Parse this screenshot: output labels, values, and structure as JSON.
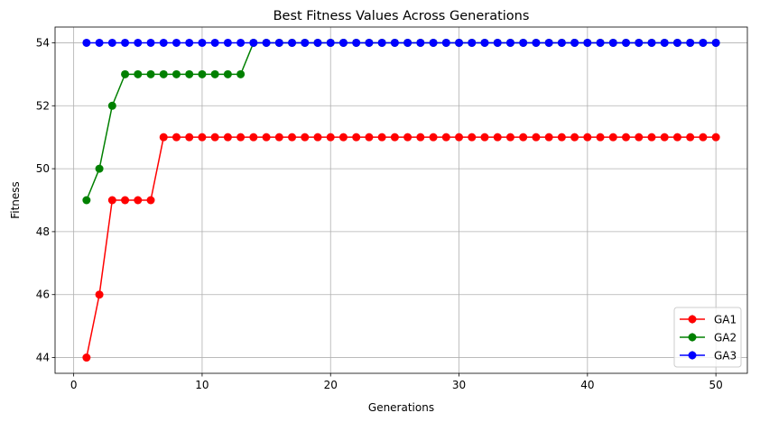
{
  "chart_data": {
    "type": "line",
    "title": "Best Fitness Values Across Generations",
    "xlabel": "Generations",
    "ylabel": "Fitness",
    "xlim": [
      -1.45,
      52.45
    ],
    "ylim": [
      43.5,
      54.5
    ],
    "xticks": [
      0,
      10,
      20,
      30,
      40,
      50
    ],
    "yticks": [
      44,
      46,
      48,
      50,
      52,
      54
    ],
    "grid": true,
    "legend_position": "lower-right",
    "x": [
      1,
      2,
      3,
      4,
      5,
      6,
      7,
      8,
      9,
      10,
      11,
      12,
      13,
      14,
      15,
      16,
      17,
      18,
      19,
      20,
      21,
      22,
      23,
      24,
      25,
      26,
      27,
      28,
      29,
      30,
      31,
      32,
      33,
      34,
      35,
      36,
      37,
      38,
      39,
      40,
      41,
      42,
      43,
      44,
      45,
      46,
      47,
      48,
      49,
      50
    ],
    "series": [
      {
        "name": "GA1",
        "color": "#ff0000",
        "values": [
          44,
          46,
          49,
          49,
          49,
          49,
          51,
          51,
          51,
          51,
          51,
          51,
          51,
          51,
          51,
          51,
          51,
          51,
          51,
          51,
          51,
          51,
          51,
          51,
          51,
          51,
          51,
          51,
          51,
          51,
          51,
          51,
          51,
          51,
          51,
          51,
          51,
          51,
          51,
          51,
          51,
          51,
          51,
          51,
          51,
          51,
          51,
          51,
          51,
          51
        ]
      },
      {
        "name": "GA2",
        "color": "#008000",
        "values": [
          49,
          50,
          52,
          53,
          53,
          53,
          53,
          53,
          53,
          53,
          53,
          53,
          53,
          54,
          54,
          54,
          54,
          54,
          54,
          54,
          54,
          54,
          54,
          54,
          54,
          54,
          54,
          54,
          54,
          54,
          54,
          54,
          54,
          54,
          54,
          54,
          54,
          54,
          54,
          54,
          54,
          54,
          54,
          54,
          54,
          54,
          54,
          54,
          54,
          54
        ]
      },
      {
        "name": "GA3",
        "color": "#0000ff",
        "values": [
          54,
          54,
          54,
          54,
          54,
          54,
          54,
          54,
          54,
          54,
          54,
          54,
          54,
          54,
          54,
          54,
          54,
          54,
          54,
          54,
          54,
          54,
          54,
          54,
          54,
          54,
          54,
          54,
          54,
          54,
          54,
          54,
          54,
          54,
          54,
          54,
          54,
          54,
          54,
          54,
          54,
          54,
          54,
          54,
          54,
          54,
          54,
          54,
          54,
          54
        ]
      }
    ]
  }
}
